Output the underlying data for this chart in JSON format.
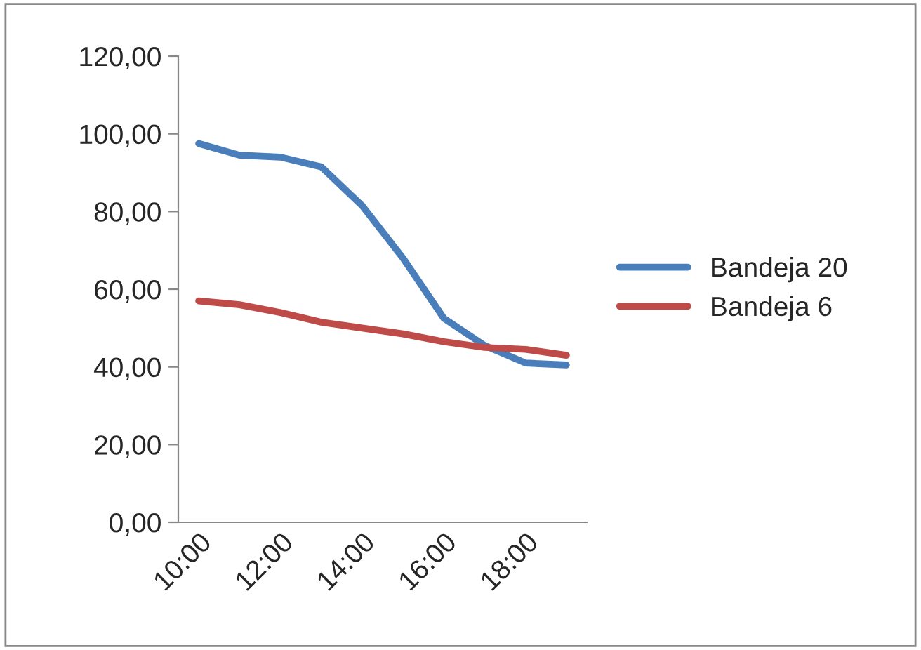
{
  "chart_data": {
    "type": "line",
    "categories": [
      "10:00",
      null,
      "12:00",
      null,
      "14:00",
      null,
      "16:00",
      null,
      "18:00",
      null
    ],
    "series": [
      {
        "name": "Bandeja 20",
        "color": "#4a7ebb",
        "values": [
          97.5,
          94.5,
          94,
          91.5,
          81.5,
          68,
          52.5,
          45.5,
          41,
          40.5
        ]
      },
      {
        "name": "Bandeja 6",
        "color": "#be4b48",
        "values": [
          57,
          56,
          54,
          51.5,
          50,
          48.5,
          46.5,
          45,
          44.5,
          43
        ]
      }
    ],
    "ylim": [
      0,
      120
    ],
    "yticks": [
      {
        "value": 0,
        "label": "0,00"
      },
      {
        "value": 20,
        "label": "20,00"
      },
      {
        "value": 40,
        "label": "40,00"
      },
      {
        "value": 60,
        "label": "60,00"
      },
      {
        "value": 80,
        "label": "80,00"
      },
      {
        "value": 100,
        "label": "100,00"
      },
      {
        "value": 120,
        "label": "120,00"
      }
    ],
    "grid": false,
    "legend": "right",
    "marker": "none",
    "line_style": "solid"
  }
}
